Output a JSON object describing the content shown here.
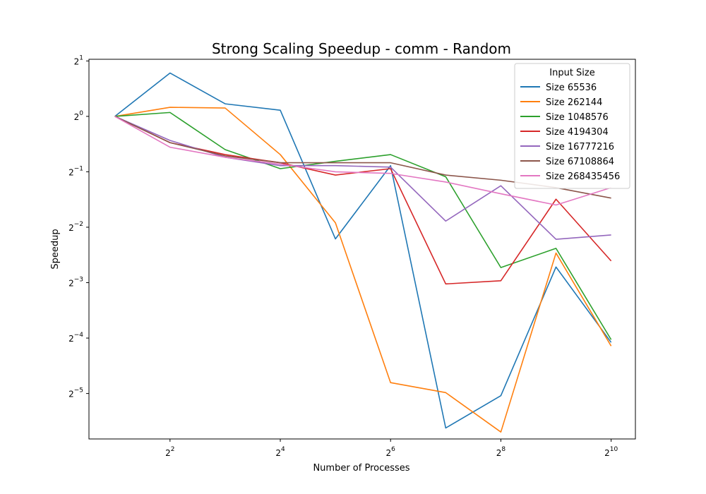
{
  "chart_data": {
    "type": "line",
    "title": "Strong Scaling Speedup - comm - Random",
    "xlabel": "Number of Processes",
    "ylabel": "Speedup",
    "xscale": "log2",
    "yscale": "log2",
    "xlim_exp": [
      0.53,
      10.44
    ],
    "ylim_exp": [
      -5.82,
      1.03
    ],
    "x_ticks": [
      {
        "exp": 2,
        "base": "2",
        "sup": "2"
      },
      {
        "exp": 4,
        "base": "2",
        "sup": "4"
      },
      {
        "exp": 6,
        "base": "2",
        "sup": "6"
      },
      {
        "exp": 8,
        "base": "2",
        "sup": "8"
      },
      {
        "exp": 10,
        "base": "2",
        "sup": "10"
      }
    ],
    "y_ticks": [
      {
        "exp": 1,
        "base": "2",
        "sup": "1"
      },
      {
        "exp": 0,
        "base": "2",
        "sup": "0"
      },
      {
        "exp": -1,
        "base": "2",
        "sup": "−1"
      },
      {
        "exp": -2,
        "base": "2",
        "sup": "−2"
      },
      {
        "exp": -3,
        "base": "2",
        "sup": "−3"
      },
      {
        "exp": -4,
        "base": "2",
        "sup": "−4"
      },
      {
        "exp": -5,
        "base": "2",
        "sup": "−5"
      }
    ],
    "x": [
      2,
      4,
      8,
      16,
      32,
      64,
      128,
      256,
      512,
      1024
    ],
    "legend_title": "Input Size",
    "legend_position": "top-right",
    "grid": false,
    "series": [
      {
        "name": "Size 65536",
        "color": "#1f77b4",
        "values": [
          1.0,
          1.72,
          1.17,
          1.08,
          0.216,
          0.54,
          0.0203,
          0.0304,
          0.152,
          0.0592
        ]
      },
      {
        "name": "Size 262144",
        "color": "#ff7f0e",
        "values": [
          1.0,
          1.12,
          1.11,
          0.62,
          0.264,
          0.0358,
          0.0316,
          0.0193,
          0.181,
          0.0566
        ]
      },
      {
        "name": "Size 1048576",
        "color": "#2ca02c",
        "values": [
          1.0,
          1.05,
          0.66,
          0.52,
          0.57,
          0.62,
          0.47,
          0.151,
          0.192,
          0.0613
        ]
      },
      {
        "name": "Size 4194304",
        "color": "#d62728",
        "values": [
          1.0,
          0.72,
          0.62,
          0.56,
          0.48,
          0.52,
          0.123,
          0.128,
          0.355,
          0.164
        ]
      },
      {
        "name": "Size 16777216",
        "color": "#9467bd",
        "values": [
          1.0,
          0.74,
          0.6,
          0.54,
          0.54,
          0.53,
          0.27,
          0.42,
          0.215,
          0.227
        ]
      },
      {
        "name": "Size 67108864",
        "color": "#8c564b",
        "values": [
          1.0,
          0.72,
          0.61,
          0.56,
          0.56,
          0.56,
          0.48,
          0.45,
          0.41,
          0.36
        ]
      },
      {
        "name": "Size 268435456",
        "color": "#e377c2",
        "values": [
          1.0,
          0.68,
          0.6,
          0.55,
          0.5,
          0.49,
          0.44,
          0.38,
          0.33,
          0.41
        ]
      }
    ]
  }
}
